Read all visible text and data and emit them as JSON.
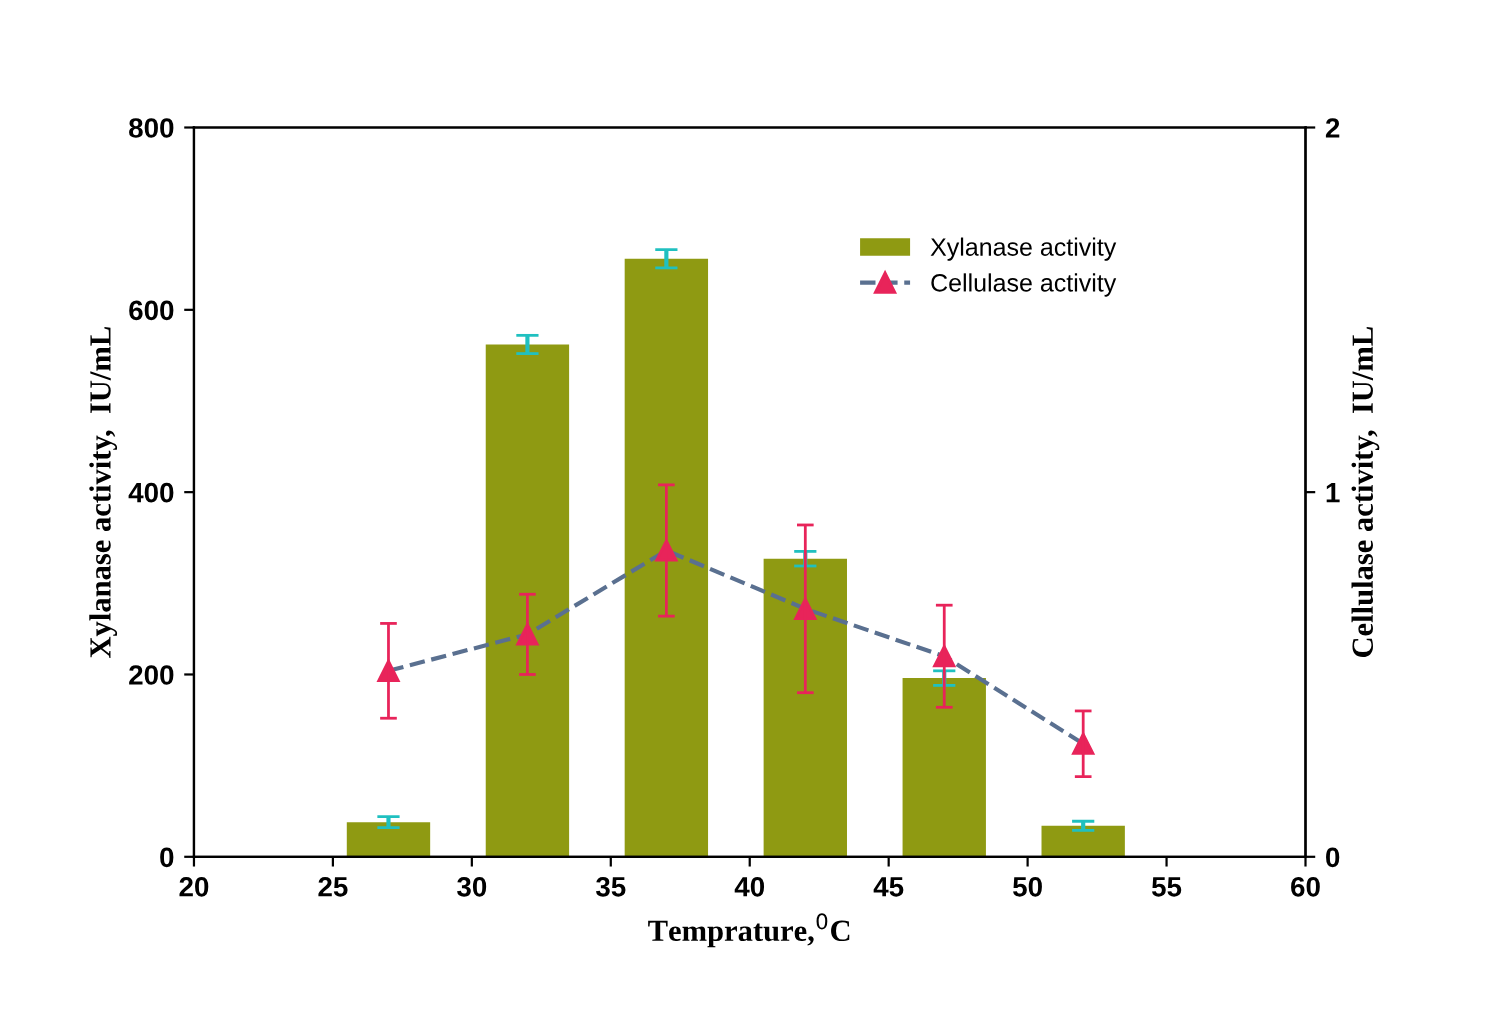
{
  "chart_data": {
    "type": "bar",
    "xlabel": "Temprature,$^{0}$C",
    "ylabel": "Xylanase activity,  IU/mL",
    "y2label": "Cellulase activity,  IU/mL",
    "x": [
      27,
      32,
      37,
      42,
      47,
      52
    ],
    "series": [
      {
        "name": "Xylanase activity",
        "color": "#8f9a12",
        "values": [
          38,
          562,
          656,
          327,
          196,
          34
        ],
        "errors": [
          6,
          10,
          10,
          8,
          8,
          5
        ]
      },
      {
        "name": "Cellulase activity",
        "type": "line",
        "axis": "y2",
        "color": "#e8245a",
        "values": [
          0.51,
          0.61,
          0.84,
          0.68,
          0.55,
          0.31
        ],
        "errors": [
          0.13,
          0.11,
          0.18,
          0.23,
          0.14,
          0.09
        ],
        "marker": "triangle",
        "line_style": "dashed"
      }
    ],
    "xlim": [
      20,
      60
    ],
    "xticks": [
      20,
      25,
      30,
      35,
      40,
      45,
      50,
      55,
      60
    ],
    "ylim": [
      0,
      800
    ],
    "yticks": [
      0,
      200,
      400,
      600,
      800
    ],
    "y2lim": [
      0,
      2
    ],
    "y2ticks": [
      0,
      1,
      2
    ],
    "grid": false,
    "legend": "top right"
  }
}
